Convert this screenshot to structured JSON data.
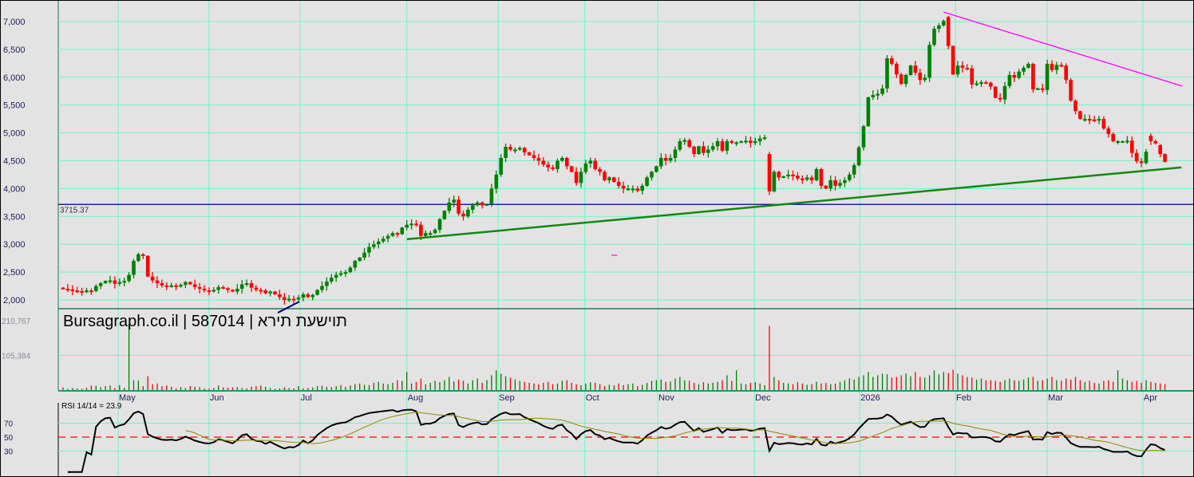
{
  "title": {
    "site": "Bursagraph.co.il",
    "separator": " | ",
    "ticker": "587014",
    "name": "ארית תעשיות"
  },
  "rsi_label": "RSI 14/14 = 23.9",
  "colors": {
    "up": "#008000",
    "down": "#ff0000",
    "grid": "#6ff5c4",
    "support": "#118811",
    "resistance": "#ff00ff",
    "level": "#000080",
    "rsi": "#000000",
    "rsi_signal": "#8b8b00",
    "rsi_mid": "#ff0000",
    "bg": "#e3e3e3"
  },
  "chart_data": {
    "type": "candlestick",
    "title": "Bursagraph.co.il | 587014 | ארית תעשיות",
    "price_axis": {
      "ticks": [
        "7,000",
        "6,500",
        "6,000",
        "5,500",
        "5,000",
        "4,500",
        "4,000",
        "3,500",
        "3,000",
        "2,500",
        "2,000"
      ],
      "values": [
        7000,
        6500,
        6000,
        5500,
        5000,
        4500,
        4000,
        3500,
        3000,
        2500,
        2000
      ],
      "range": [
        2000,
        7000
      ]
    },
    "level_line": {
      "value": 3715.37,
      "label": "3715.37"
    },
    "months": [
      {
        "label": "May",
        "bar": 11.7
      },
      {
        "label": "Jun",
        "bar": 31
      },
      {
        "label": "Jul",
        "bar": 50.3
      },
      {
        "label": "Aug",
        "bar": 73
      },
      {
        "label": "Sep",
        "bar": 92.4
      },
      {
        "label": "Oct",
        "bar": 110.8
      },
      {
        "label": "Nov",
        "bar": 126.3
      },
      {
        "label": "Dec",
        "bar": 146.8
      },
      {
        "label": "2026",
        "bar": 169.2
      },
      {
        "label": "Feb",
        "bar": 189.5
      },
      {
        "label": "Mar",
        "bar": 209
      },
      {
        "label": "Apr",
        "bar": 229.3
      }
    ],
    "closes": [
      2200,
      2190,
      2170,
      2160,
      2150,
      2170,
      2160,
      2250,
      2300,
      2340,
      2350,
      2290,
      2320,
      2340,
      2450,
      2700,
      2820,
      2790,
      2420,
      2350,
      2300,
      2260,
      2250,
      2260,
      2240,
      2270,
      2320,
      2280,
      2230,
      2200,
      2170,
      2160,
      2180,
      2230,
      2210,
      2180,
      2150,
      2200,
      2280,
      2300,
      2220,
      2180,
      2170,
      2120,
      2150,
      2100,
      2050,
      2000,
      2020,
      2010,
      2040,
      2100,
      2050,
      2090,
      2180,
      2250,
      2330,
      2400,
      2450,
      2480,
      2500,
      2580,
      2700,
      2760,
      2850,
      2950,
      3000,
      3050,
      3100,
      3150,
      3200,
      3180,
      3300,
      3350,
      3370,
      3350,
      3150,
      3200,
      3200,
      3260,
      3450,
      3600,
      3750,
      3800,
      3550,
      3500,
      3620,
      3700,
      3750,
      3700,
      3720,
      4000,
      4250,
      4550,
      4750,
      4700,
      4700,
      4730,
      4650,
      4600,
      4550,
      4500,
      4430,
      4380,
      4350,
      4500,
      4550,
      4400,
      4300,
      4100,
      4300,
      4450,
      4500,
      4350,
      4300,
      4150,
      4200,
      4120,
      4050,
      4000,
      4000,
      4000,
      3960,
      4050,
      4200,
      4300,
      4400,
      4550,
      4500,
      4550,
      4700,
      4850,
      4870,
      4750,
      4620,
      4760,
      4640,
      4700,
      4760,
      4850,
      4680,
      4850,
      4820,
      4830,
      4850,
      4860,
      4820,
      4850,
      4900,
      4920,
      3950,
      4300,
      4200,
      4220,
      4250,
      4230,
      4180,
      4160,
      4200,
      4150,
      4350,
      4050,
      4000,
      4150,
      4050,
      4100,
      4150,
      4250,
      4420,
      4740,
      5120,
      5640,
      5680,
      5700,
      5800,
      6340,
      6240,
      6050,
      5880,
      6040,
      6210,
      6080,
      5950,
      5990,
      6580,
      6870,
      6930,
      7010,
      6560,
      6050,
      6210,
      6170,
      6160,
      5870,
      5890,
      5910,
      5900,
      5830,
      5630,
      5600,
      5840,
      6040,
      5990,
      6100,
      6170,
      6240,
      5780,
      5800,
      5770,
      6240,
      6130,
      6220,
      6210,
      5950,
      5580,
      5390,
      5250,
      5250,
      5240,
      5230,
      5250,
      5080,
      4980,
      4850,
      4850,
      4850,
      4860,
      4640,
      4490,
      4460,
      4660,
      4850,
      4810,
      4620,
      4480
    ],
    "open_overrides": {
      "150": 4620,
      "188": 7080,
      "233": 4780,
      "231": 4950
    },
    "volume_axis": {
      "ticks": [
        "210,767",
        "105,384"
      ],
      "values": [
        210767,
        105384
      ]
    },
    "volumes_k": [
      8,
      4,
      6,
      5,
      4,
      7,
      14,
      13,
      8,
      12,
      14,
      6,
      15,
      7,
      200,
      30,
      29,
      12,
      42,
      18,
      20,
      12,
      14,
      10,
      5,
      9,
      6,
      12,
      10,
      9,
      5,
      4,
      6,
      14,
      8,
      7,
      8,
      9,
      6,
      5,
      10,
      12,
      14,
      10,
      6,
      4,
      5,
      8,
      6,
      5,
      12,
      5,
      6,
      8,
      12,
      13,
      10,
      9,
      12,
      15,
      10,
      14,
      18,
      20,
      16,
      15,
      22,
      25,
      20,
      18,
      22,
      30,
      28,
      55,
      20,
      25,
      35,
      18,
      22,
      28,
      24,
      30,
      40,
      26,
      32,
      28,
      20,
      30,
      35,
      22,
      30,
      45,
      60,
      50,
      42,
      38,
      32,
      28,
      25,
      22,
      20,
      18,
      22,
      25,
      18,
      20,
      28,
      30,
      22,
      18,
      15,
      20,
      24,
      22,
      18,
      12,
      16,
      14,
      20,
      15,
      18,
      20,
      12,
      16,
      22,
      28,
      30,
      32,
      25,
      26,
      35,
      40,
      30,
      28,
      22,
      18,
      24,
      20,
      22,
      25,
      30,
      45,
      28,
      60,
      20,
      18,
      22,
      24,
      20,
      15,
      195,
      40,
      30,
      22,
      20,
      18,
      24,
      20,
      16,
      18,
      25,
      20,
      22,
      18,
      20,
      25,
      30,
      35,
      32,
      40,
      45,
      55,
      40,
      45,
      50,
      48,
      38,
      40,
      45,
      50,
      42,
      55,
      40,
      38,
      45,
      60,
      48,
      55,
      52,
      62,
      50,
      45,
      40,
      38,
      32,
      35,
      30,
      30,
      28,
      25,
      30,
      35,
      30,
      28,
      32,
      38,
      40,
      28,
      30,
      35,
      40,
      30,
      28,
      35,
      32,
      40,
      30,
      25,
      28,
      22,
      20,
      28,
      30,
      25,
      60,
      35,
      30,
      25,
      28,
      22,
      30,
      25,
      22,
      20,
      18
    ],
    "rsi": {
      "period": 14,
      "signal_period": 14,
      "last": 23.9,
      "ticks": [
        "70",
        "50",
        "30"
      ],
      "levels": [
        70,
        50,
        30
      ]
    },
    "trendlines": [
      {
        "name": "support",
        "from": {
          "bar": 73,
          "price": 3090
        },
        "to": {
          "bar": 237.5,
          "price": 4380
        }
      },
      {
        "name": "resistance",
        "from": {
          "bar": 187,
          "price": 7170
        },
        "to": {
          "bar": 237.7,
          "price": 5840
        }
      },
      {
        "name": "short-blue",
        "from": {
          "bar": 45.6,
          "price": 1770
        },
        "to": {
          "bar": 50.2,
          "price": 1970
        }
      }
    ]
  }
}
